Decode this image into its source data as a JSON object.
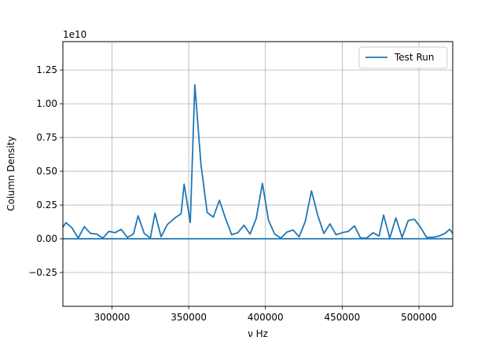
{
  "chart_data": {
    "type": "line",
    "title": "",
    "xlabel": "ν Hz",
    "ylabel": "Column Density",
    "y_offset_text": "1e10",
    "xlim": [
      268000,
      522000
    ],
    "ylim": [
      -5000000000.0,
      14600000000.0
    ],
    "x_ticks": [
      300000,
      350000,
      400000,
      450000,
      500000
    ],
    "x_tick_labels": [
      "300000",
      "350000",
      "400000",
      "450000",
      "500000"
    ],
    "y_ticks": [
      -2500000000.0,
      0,
      2500000000.0,
      5000000000.0,
      7500000000.0,
      10000000000.0,
      12500000000.0
    ],
    "y_tick_labels": [
      "−0.25",
      "0.00",
      "0.25",
      "0.50",
      "0.75",
      "1.00",
      "1.25"
    ],
    "grid": true,
    "legend_position": "top-right",
    "color": "#1f77b4",
    "series": [
      {
        "name": "Test Run",
        "x": [
          268000,
          270000,
          274000,
          278000,
          282000,
          286000,
          290000,
          294000,
          298000,
          302000,
          306000,
          310000,
          314000,
          317000,
          321000,
          325000,
          328000,
          332000,
          336000,
          341000,
          345000,
          347000,
          351000,
          354000,
          358000,
          362000,
          366000,
          370000,
          374000,
          378000,
          382000,
          386000,
          390000,
          394000,
          398000,
          402000,
          406000,
          410000,
          414000,
          418000,
          422000,
          426000,
          430000,
          434000,
          438000,
          442000,
          446000,
          450000,
          454000,
          458000,
          462000,
          466000,
          470000,
          474000,
          477000,
          481000,
          485000,
          489000,
          493000,
          497000,
          501000,
          505000,
          509000,
          513000,
          517000,
          520000,
          522000
        ],
        "values": [
          850000000.0,
          1200000000.0,
          800000000.0,
          50000000.0,
          900000000.0,
          400000000.0,
          350000000.0,
          50000000.0,
          550000000.0,
          450000000.0,
          700000000.0,
          100000000.0,
          350000000.0,
          1700000000.0,
          400000000.0,
          50000000.0,
          1900000000.0,
          150000000.0,
          1050000000.0,
          1550000000.0,
          1850000000.0,
          4050000000.0,
          1200000000.0,
          11400000000.0,
          5500000000.0,
          1950000000.0,
          1600000000.0,
          2850000000.0,
          1500000000.0,
          300000000.0,
          450000000.0,
          1000000000.0,
          350000000.0,
          1500000000.0,
          4100000000.0,
          1350000000.0,
          350000000.0,
          50000000.0,
          500000000.0,
          650000000.0,
          150000000.0,
          1300000000.0,
          3550000000.0,
          1750000000.0,
          400000000.0,
          1100000000.0,
          300000000.0,
          450000000.0,
          550000000.0,
          950000000.0,
          50000000.0,
          50000000.0,
          450000000.0,
          200000000.0,
          1750000000.0,
          50000000.0,
          1550000000.0,
          100000000.0,
          1350000000.0,
          1450000000.0,
          850000000.0,
          100000000.0,
          100000000.0,
          200000000.0,
          400000000.0,
          700000000.0,
          400000000.0
        ]
      }
    ],
    "reference_line": {
      "y": 0
    }
  }
}
